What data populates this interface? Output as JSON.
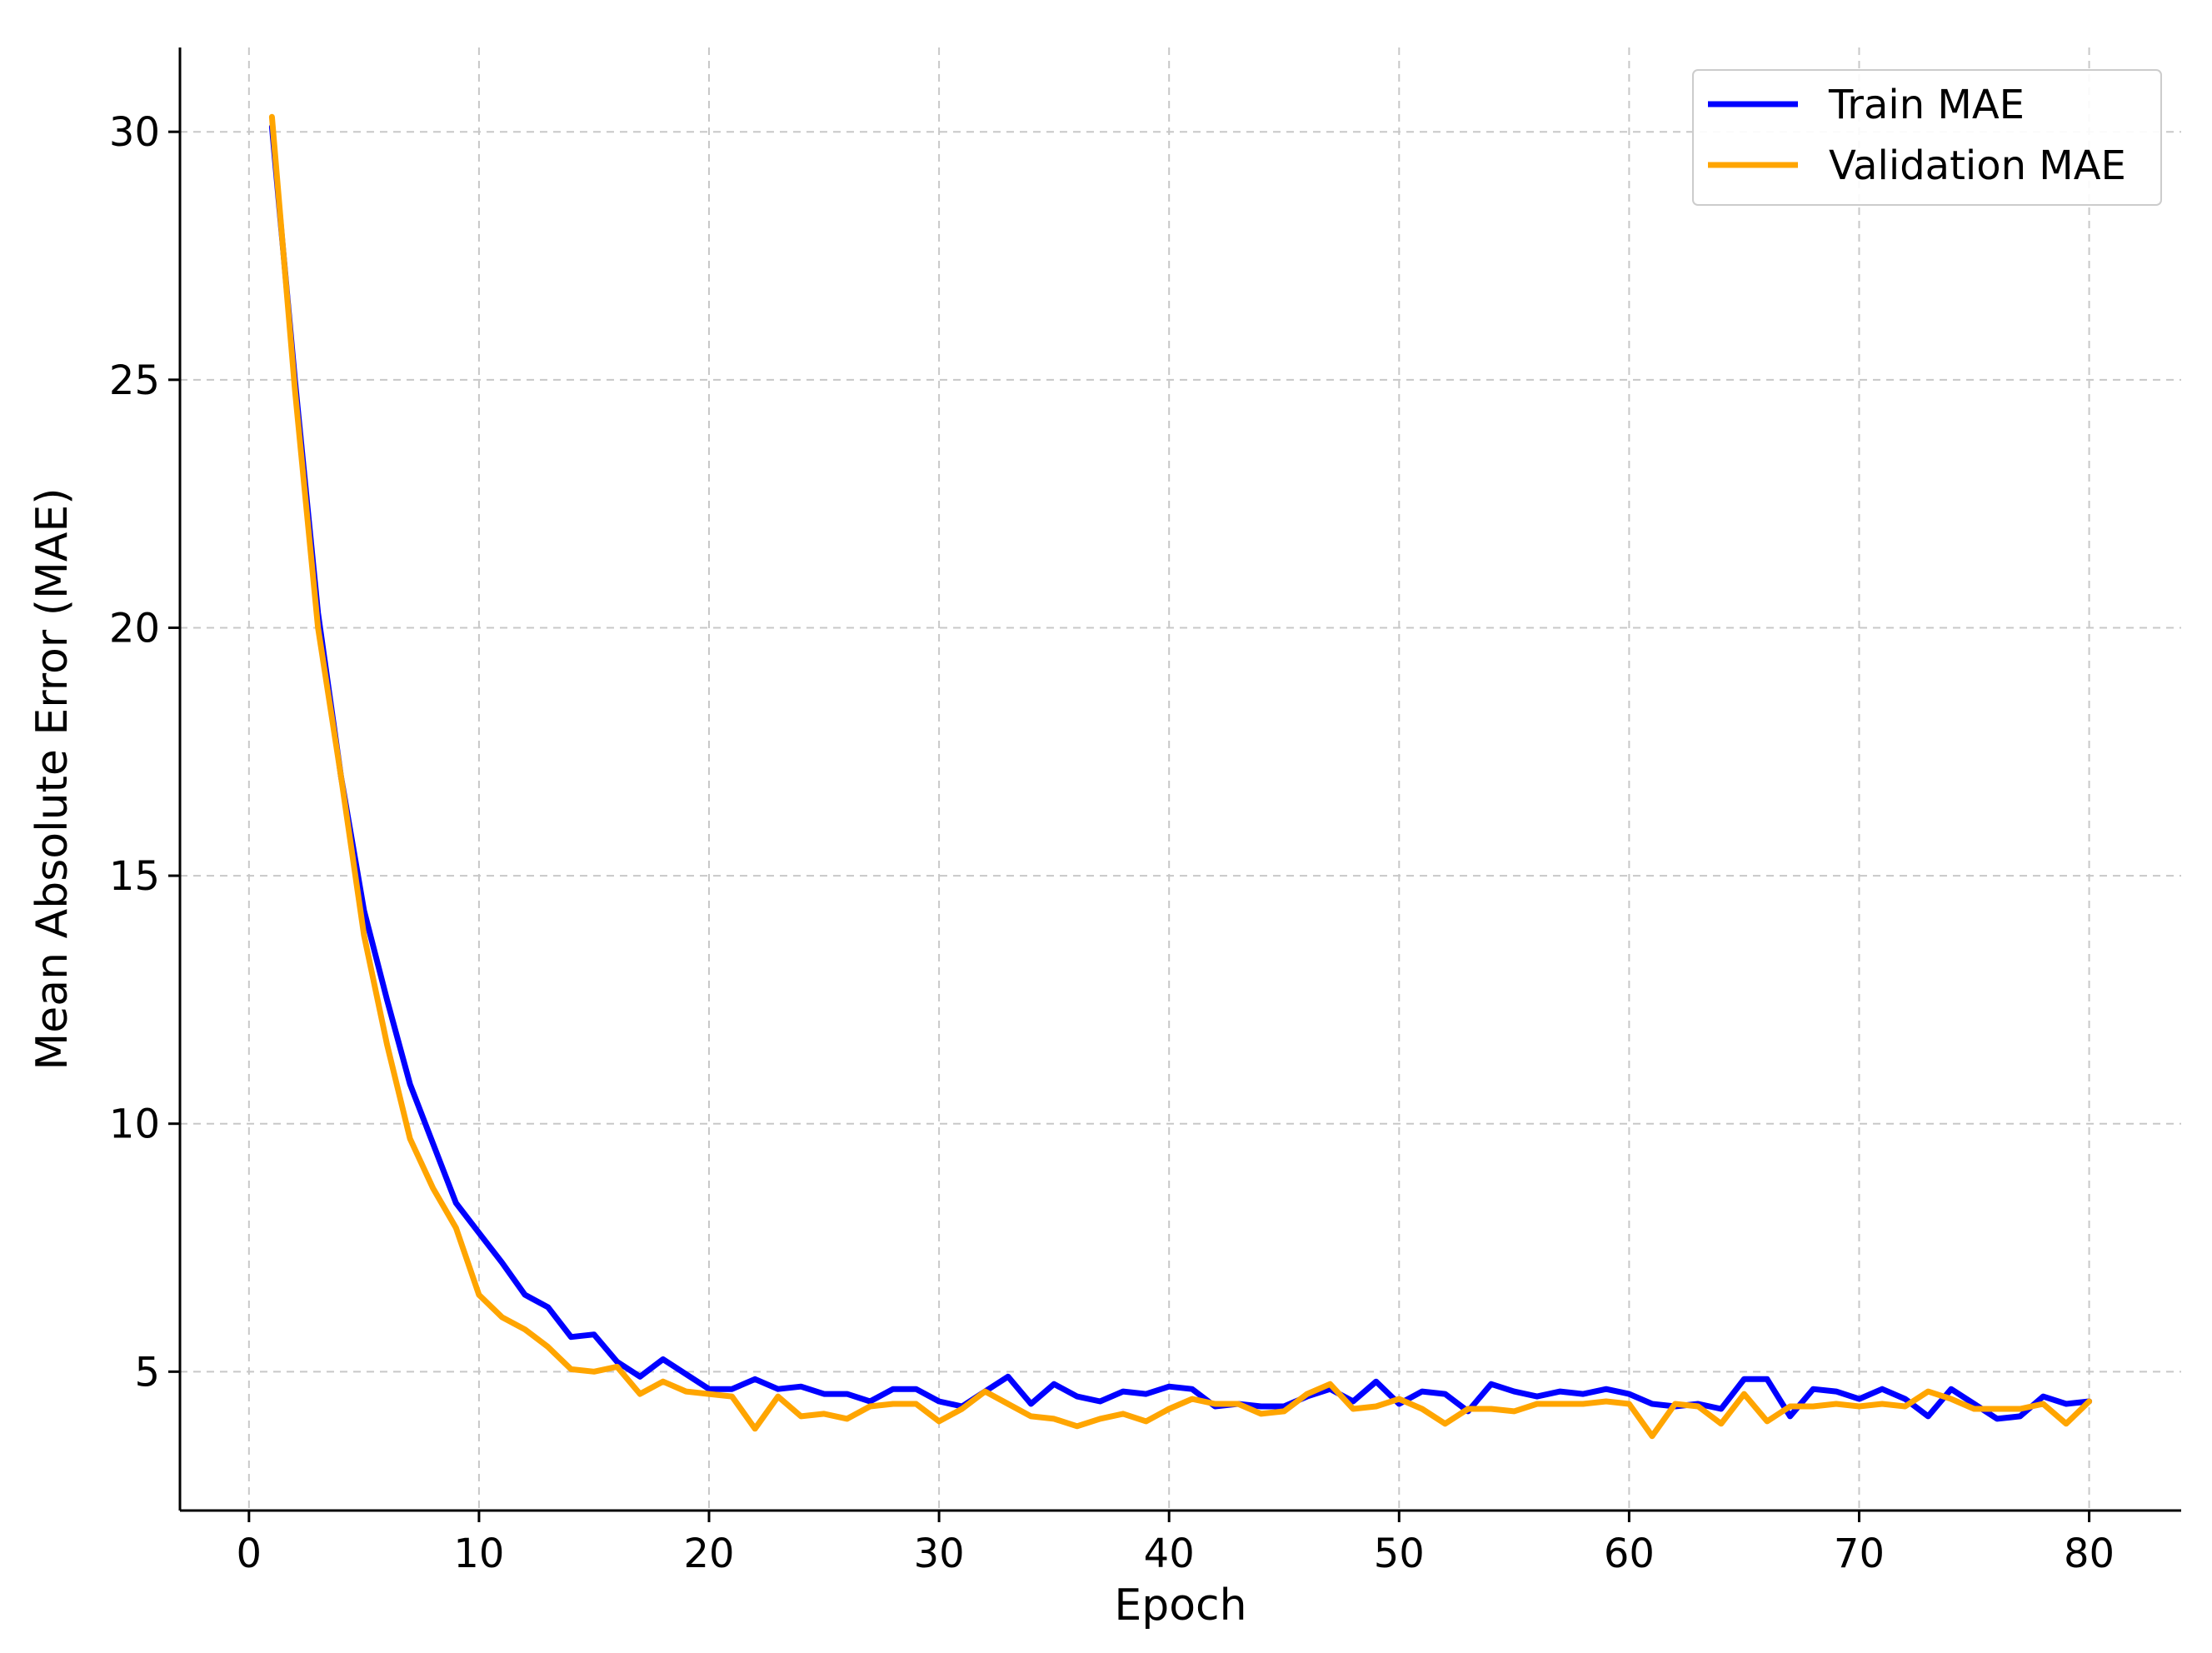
{
  "chart_data": {
    "type": "line",
    "title": "",
    "xlabel": "Epoch",
    "ylabel": "Mean Absolute Error (MAE)",
    "xlim": [
      -3,
      84
    ],
    "ylim": [
      2.2,
      31.7
    ],
    "x_ticks": [
      0,
      10,
      20,
      30,
      40,
      50,
      60,
      70,
      80
    ],
    "y_ticks": [
      5,
      10,
      15,
      20,
      25,
      30
    ],
    "grid": true,
    "legend_position": "top-right",
    "x": [
      1,
      2,
      3,
      4,
      5,
      6,
      7,
      8,
      9,
      10,
      11,
      12,
      13,
      14,
      15,
      16,
      17,
      18,
      19,
      20,
      21,
      22,
      23,
      24,
      25,
      26,
      27,
      28,
      29,
      30,
      31,
      32,
      33,
      34,
      35,
      36,
      37,
      38,
      39,
      40,
      41,
      42,
      43,
      44,
      45,
      46,
      47,
      48,
      49,
      50,
      51,
      52,
      53,
      54,
      55,
      56,
      57,
      58,
      59,
      60,
      61,
      62,
      63,
      64,
      65,
      66,
      67,
      68,
      69,
      70,
      71,
      72,
      73,
      74,
      75,
      76,
      77,
      78,
      79,
      80
    ],
    "series": [
      {
        "name": "Train MAE",
        "color": "#0000ff",
        "values": [
          30.1,
          25.0,
          20.3,
          17.0,
          14.3,
          12.5,
          10.8,
          9.6,
          8.4,
          7.8,
          7.2,
          6.55,
          6.3,
          5.7,
          5.75,
          5.2,
          4.9,
          5.25,
          4.95,
          4.65,
          4.65,
          4.85,
          4.65,
          4.7,
          4.55,
          4.55,
          4.4,
          4.65,
          4.65,
          4.4,
          4.3,
          4.6,
          4.9,
          4.35,
          4.75,
          4.5,
          4.4,
          4.6,
          4.55,
          4.7,
          4.65,
          4.3,
          4.35,
          4.3,
          4.3,
          4.5,
          4.65,
          4.4,
          4.8,
          4.35,
          4.6,
          4.55,
          4.2,
          4.75,
          4.6,
          4.5,
          4.6,
          4.55,
          4.65,
          4.55,
          4.35,
          4.3,
          4.35,
          4.25,
          4.85,
          4.85,
          4.1,
          4.65,
          4.6,
          4.45,
          4.65,
          4.45,
          4.1,
          4.65,
          4.35,
          4.05,
          4.1,
          4.5,
          4.35,
          4.4
        ]
      },
      {
        "name": "Validation MAE",
        "color": "#ffa500",
        "values": [
          30.3,
          24.8,
          20.0,
          17.0,
          13.8,
          11.6,
          9.7,
          8.7,
          7.9,
          6.55,
          6.1,
          5.85,
          5.5,
          5.05,
          5.0,
          5.1,
          4.55,
          4.8,
          4.6,
          4.55,
          4.5,
          3.85,
          4.5,
          4.1,
          4.15,
          4.05,
          4.3,
          4.35,
          4.35,
          4.0,
          4.25,
          4.6,
          4.35,
          4.1,
          4.05,
          3.9,
          4.05,
          4.15,
          4.0,
          4.25,
          4.45,
          4.35,
          4.35,
          4.15,
          4.2,
          4.55,
          4.75,
          4.25,
          4.3,
          4.45,
          4.25,
          3.95,
          4.25,
          4.25,
          4.2,
          4.35,
          4.35,
          4.35,
          4.4,
          4.35,
          3.7,
          4.35,
          4.3,
          3.95,
          4.55,
          4.0,
          4.3,
          4.3,
          4.35,
          4.3,
          4.35,
          4.3,
          4.6,
          4.45,
          4.25,
          4.25,
          4.25,
          4.35,
          3.95,
          4.4
        ]
      }
    ]
  }
}
